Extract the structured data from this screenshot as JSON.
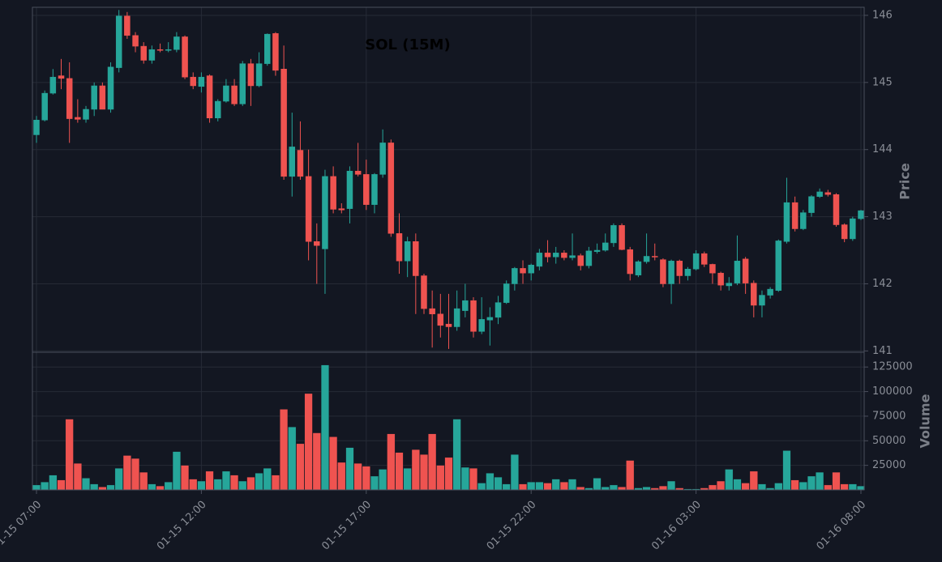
{
  "chart_data": {
    "type": "candlestick",
    "title": "SOL (15M)",
    "y_label": "Price",
    "volume_label": "Volume",
    "up_color": "#26a69a",
    "down_color": "#ef5350",
    "grid": true,
    "x": [
      "01-15 07:00",
      "01-15 07:15",
      "01-15 07:30",
      "01-15 07:45",
      "01-15 08:00",
      "01-15 08:15",
      "01-15 08:30",
      "01-15 08:45",
      "01-15 09:00",
      "01-15 09:15",
      "01-15 09:30",
      "01-15 09:45",
      "01-15 10:00",
      "01-15 10:15",
      "01-15 10:30",
      "01-15 10:45",
      "01-15 11:00",
      "01-15 11:15",
      "01-15 11:30",
      "01-15 11:45",
      "01-15 12:00",
      "01-15 12:15",
      "01-15 12:30",
      "01-15 12:45",
      "01-15 13:00",
      "01-15 13:15",
      "01-15 13:30",
      "01-15 13:45",
      "01-15 14:00",
      "01-15 14:15",
      "01-15 14:30",
      "01-15 14:45",
      "01-15 15:00",
      "01-15 15:15",
      "01-15 15:30",
      "01-15 15:45",
      "01-15 16:00",
      "01-15 16:15",
      "01-15 16:30",
      "01-15 16:45",
      "01-15 17:00",
      "01-15 17:15",
      "01-15 17:30",
      "01-15 17:45",
      "01-15 18:00",
      "01-15 18:15",
      "01-15 18:30",
      "01-15 18:45",
      "01-15 19:00",
      "01-15 19:15",
      "01-15 19:30",
      "01-15 19:45",
      "01-15 20:00",
      "01-15 20:15",
      "01-15 20:30",
      "01-15 20:45",
      "01-15 21:00",
      "01-15 21:15",
      "01-15 21:30",
      "01-15 21:45",
      "01-15 22:00",
      "01-15 22:15",
      "01-15 22:30",
      "01-15 22:45",
      "01-15 23:00",
      "01-15 23:15",
      "01-15 23:30",
      "01-15 23:45",
      "01-16 00:00",
      "01-16 00:15",
      "01-16 00:30",
      "01-16 00:45",
      "01-16 01:00",
      "01-16 01:15",
      "01-16 01:30",
      "01-16 01:45",
      "01-16 02:00",
      "01-16 02:15",
      "01-16 02:30",
      "01-16 02:45",
      "01-16 03:00",
      "01-16 03:15",
      "01-16 03:30",
      "01-16 03:45",
      "01-16 04:00",
      "01-16 04:15",
      "01-16 04:30",
      "01-16 04:45",
      "01-16 05:00",
      "01-16 05:15",
      "01-16 05:30",
      "01-16 05:45",
      "01-16 06:00",
      "01-16 06:15",
      "01-16 06:30",
      "01-16 06:45",
      "01-16 07:00",
      "01-16 07:15",
      "01-16 07:30",
      "01-16 07:45",
      "01-16 08:00"
    ],
    "open": [
      144.22,
      144.44,
      144.84,
      145.1,
      145.06,
      144.48,
      144.45,
      144.6,
      144.95,
      144.6,
      145.22,
      145.99,
      145.7,
      145.54,
      145.33,
      145.49,
      145.48,
      145.49,
      145.68,
      145.08,
      144.94,
      145.1,
      144.47,
      144.72,
      144.95,
      144.68,
      145.28,
      144.95,
      145.28,
      145.73,
      145.2,
      143.6,
      143.99,
      143.6,
      142.63,
      142.52,
      143.6,
      143.12,
      143.12,
      143.68,
      143.63,
      143.18,
      143.63,
      144.1,
      142.75,
      142.34,
      142.63,
      142.12,
      141.63,
      141.55,
      141.4,
      141.36,
      141.6,
      141.75,
      141.29,
      141.46,
      141.5,
      141.72,
      142.0,
      142.23,
      142.16,
      142.26,
      142.46,
      142.4,
      142.46,
      142.39,
      142.42,
      142.27,
      142.48,
      142.5,
      142.61,
      142.87,
      142.51,
      142.13,
      142.33,
      142.41,
      142.36,
      142.0,
      142.34,
      142.12,
      142.22,
      142.45,
      142.29,
      142.16,
      141.97,
      142.01,
      142.37,
      142.01,
      141.68,
      141.83,
      141.9,
      142.63,
      143.21,
      142.82,
      143.06,
      143.3,
      143.36,
      143.33,
      142.88,
      142.67,
      142.97
    ],
    "high": [
      144.5,
      144.88,
      145.2,
      145.35,
      145.3,
      144.75,
      144.65,
      145.0,
      145.0,
      145.3,
      146.08,
      146.05,
      145.75,
      145.6,
      145.55,
      145.58,
      145.6,
      145.75,
      145.7,
      145.15,
      145.15,
      145.12,
      144.75,
      145.05,
      145.05,
      145.32,
      145.35,
      145.45,
      145.73,
      145.75,
      145.55,
      144.55,
      144.42,
      144.0,
      142.9,
      143.7,
      143.75,
      143.2,
      143.75,
      144.1,
      143.85,
      143.65,
      144.3,
      144.15,
      143.05,
      142.7,
      142.75,
      142.15,
      141.9,
      141.85,
      141.85,
      141.9,
      142.0,
      141.8,
      141.8,
      141.65,
      141.82,
      142.05,
      142.25,
      142.35,
      142.3,
      142.52,
      142.65,
      142.55,
      142.5,
      142.75,
      142.45,
      142.55,
      142.6,
      142.75,
      142.9,
      142.9,
      142.55,
      142.35,
      142.75,
      142.6,
      142.38,
      142.36,
      142.36,
      142.25,
      142.5,
      142.48,
      142.3,
      142.18,
      142.1,
      142.72,
      142.4,
      142.05,
      141.9,
      141.95,
      142.66,
      143.58,
      143.3,
      143.1,
      143.32,
      143.42,
      143.4,
      143.35,
      142.9,
      143.0,
      143.1
    ],
    "low": [
      144.1,
      144.42,
      144.82,
      144.9,
      144.1,
      144.4,
      144.4,
      144.5,
      144.6,
      144.55,
      145.15,
      145.65,
      145.45,
      145.28,
      145.28,
      145.45,
      145.45,
      145.45,
      145.05,
      144.9,
      144.85,
      144.4,
      144.42,
      144.7,
      144.65,
      144.65,
      144.65,
      144.93,
      145.25,
      145.1,
      143.55,
      143.3,
      143.55,
      142.35,
      142.0,
      141.85,
      143.05,
      143.05,
      142.9,
      143.6,
      143.1,
      143.05,
      143.58,
      142.7,
      142.15,
      142.1,
      141.55,
      141.55,
      141.05,
      141.2,
      141.03,
      141.3,
      141.5,
      141.2,
      141.25,
      141.08,
      141.4,
      141.7,
      141.9,
      142.0,
      142.05,
      142.2,
      142.32,
      142.3,
      142.35,
      142.35,
      142.2,
      142.23,
      142.45,
      142.48,
      142.55,
      142.5,
      142.05,
      142.1,
      142.3,
      142.35,
      141.95,
      141.7,
      142.0,
      142.05,
      142.2,
      142.25,
      142.0,
      141.9,
      141.9,
      141.98,
      141.85,
      141.5,
      141.5,
      141.78,
      141.88,
      142.6,
      142.78,
      142.8,
      143.0,
      143.28,
      143.3,
      142.85,
      142.62,
      142.64,
      142.95
    ],
    "close": [
      144.44,
      144.84,
      145.08,
      145.06,
      144.46,
      144.45,
      144.6,
      144.95,
      144.6,
      145.23,
      145.99,
      145.7,
      145.54,
      145.33,
      145.49,
      145.48,
      145.49,
      145.68,
      145.08,
      144.95,
      145.08,
      144.47,
      144.72,
      144.95,
      144.68,
      145.28,
      144.95,
      145.28,
      145.72,
      145.18,
      143.6,
      144.04,
      143.6,
      142.63,
      142.57,
      143.6,
      143.11,
      143.1,
      143.68,
      143.63,
      143.18,
      143.63,
      144.1,
      142.75,
      142.34,
      142.63,
      142.12,
      141.63,
      141.55,
      141.38,
      141.36,
      141.63,
      141.75,
      141.29,
      141.47,
      141.5,
      141.72,
      142.0,
      142.23,
      142.16,
      142.28,
      142.46,
      142.4,
      142.46,
      142.39,
      142.42,
      142.27,
      142.49,
      142.5,
      142.61,
      142.87,
      142.51,
      142.15,
      142.33,
      142.41,
      142.4,
      142.0,
      142.34,
      142.12,
      142.22,
      142.45,
      142.29,
      142.16,
      141.98,
      142.01,
      142.34,
      142.01,
      141.68,
      141.83,
      141.92,
      142.64,
      143.21,
      142.82,
      143.06,
      143.3,
      143.37,
      143.33,
      142.88,
      142.67,
      142.97,
      143.09
    ],
    "volume": [
      5000,
      8000,
      15000,
      10000,
      72000,
      27000,
      12000,
      6000,
      3000,
      5000,
      22000,
      35000,
      32000,
      18000,
      6000,
      4000,
      8000,
      39000,
      25000,
      11000,
      9000,
      19000,
      11000,
      19000,
      15000,
      9000,
      13000,
      17000,
      22000,
      15000,
      82000,
      64000,
      47000,
      98000,
      58000,
      127000,
      54000,
      28000,
      43000,
      27000,
      24000,
      14000,
      21000,
      57000,
      38000,
      22000,
      41000,
      36000,
      57000,
      25000,
      33000,
      72000,
      23000,
      22000,
      7000,
      17000,
      13000,
      6000,
      36000,
      6000,
      8000,
      8000,
      7000,
      11000,
      8000,
      11000,
      3000,
      2000,
      12000,
      3000,
      5000,
      3000,
      30000,
      2000,
      3000,
      2000,
      4000,
      9000,
      2000,
      1000,
      1000,
      2000,
      5000,
      9000,
      21000,
      11000,
      7000,
      19000,
      6000,
      2000,
      7000,
      40000,
      10000,
      8000,
      14000,
      18000,
      5000,
      18000,
      6000,
      6000,
      4000
    ],
    "ylim": [
      140.98,
      146.12
    ],
    "yticks": [
      141,
      142,
      143,
      144,
      145,
      146
    ],
    "volume_ylim": [
      0,
      140000
    ],
    "volume_yticks": [
      25000,
      50000,
      75000,
      100000,
      125000
    ],
    "xticks": [
      "01-15 07:00",
      "01-15 12:00",
      "01-15 17:00",
      "01-15 22:00",
      "01-16 03:00",
      "01-16 08:00"
    ]
  }
}
